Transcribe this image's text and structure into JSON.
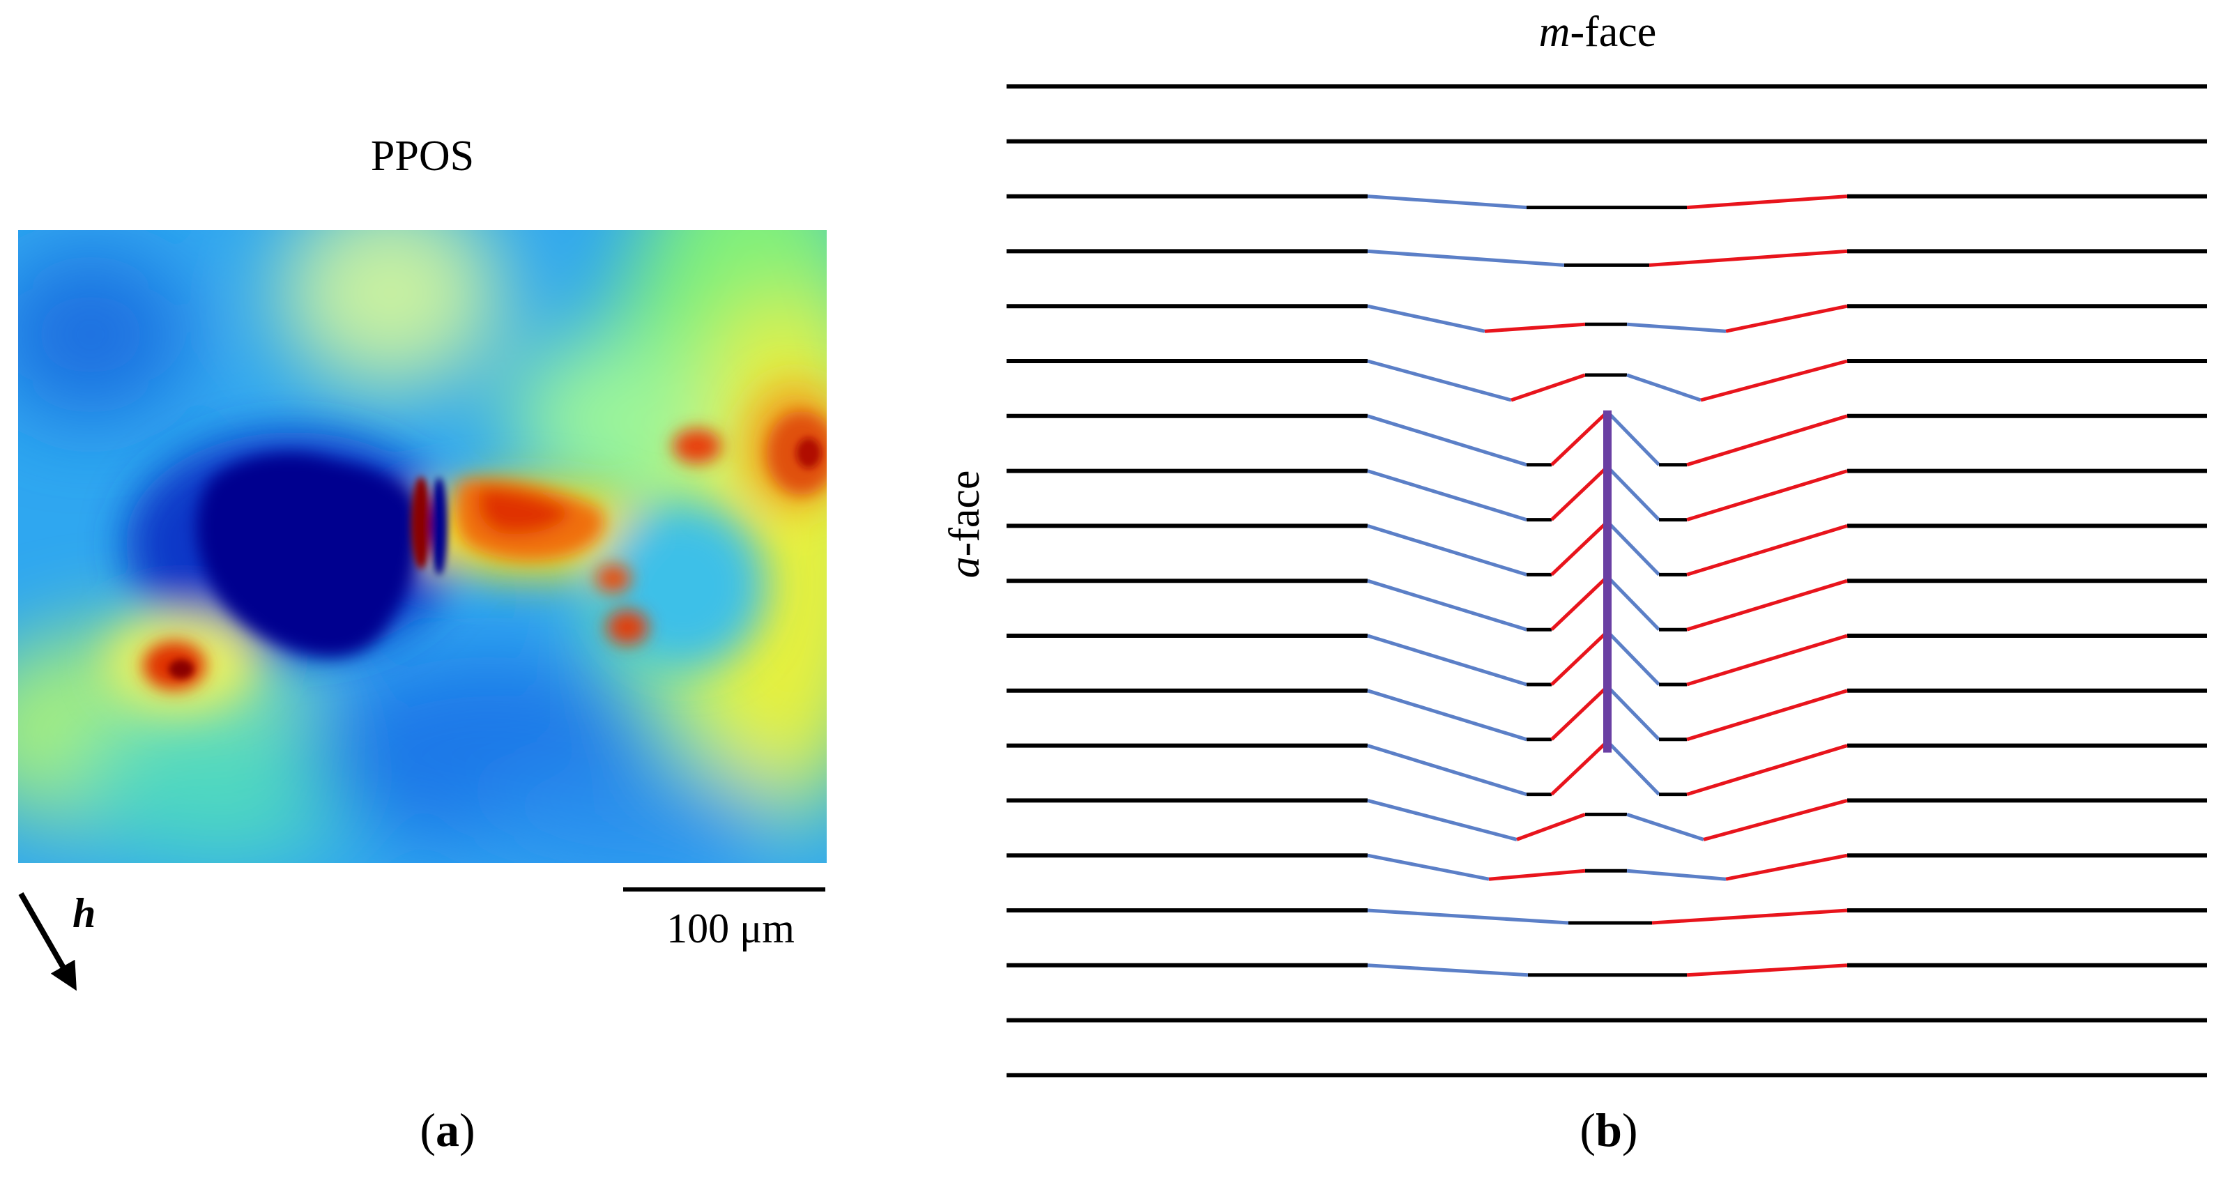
{
  "panel_a": {
    "title": "PPOS",
    "arrow_label": "h",
    "scalebar_label": "100 μm",
    "caption_open": "(",
    "caption_letter": "a",
    "caption_close": ")"
  },
  "panel_b": {
    "top_label_italic": "m",
    "top_label_rest": "-face",
    "side_label_italic": "a",
    "side_label_rest": "-face",
    "caption_open": "(",
    "caption_letter": "b",
    "caption_close": ")",
    "colors": {
      "straight_lines": "#000000",
      "left_tilt": "#5b7fc7",
      "right_tilt": "#e8141c",
      "central_boundary": "#6a3fa3"
    }
  },
  "colormap": {
    "background": "#2fa7f0",
    "deep_blue": "#00008f",
    "dark_red": "#8a0000",
    "red": "#e03000",
    "yellow": "#f7f200",
    "green": "#5cf08a"
  }
}
